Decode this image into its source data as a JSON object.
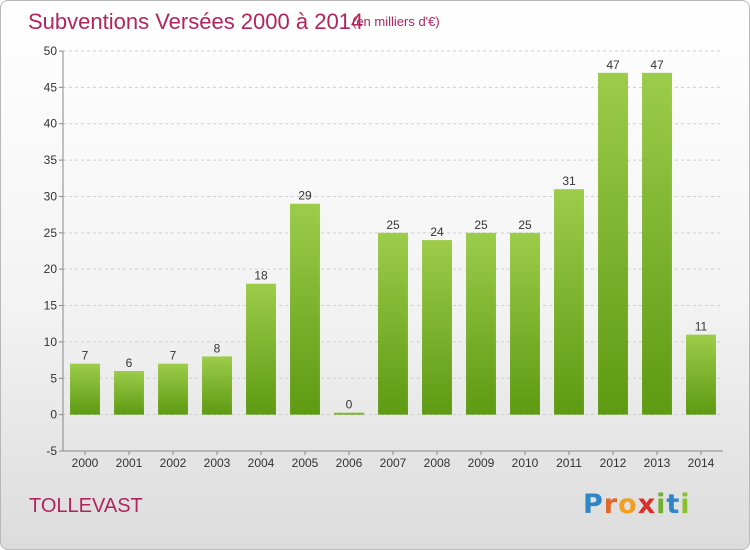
{
  "chart_data": {
    "type": "bar",
    "title": "Subventions Versées 2000 à 2014",
    "subtitle": "(en milliers d'€)",
    "categories": [
      "2000",
      "2001",
      "2002",
      "2003",
      "2004",
      "2005",
      "2006",
      "2007",
      "2008",
      "2009",
      "2010",
      "2011",
      "2012",
      "2013",
      "2014"
    ],
    "values": [
      7,
      6,
      7,
      8,
      18,
      29,
      0,
      25,
      24,
      25,
      25,
      31,
      47,
      47,
      11
    ],
    "ylim": [
      -5,
      50
    ],
    "yticks": [
      -5,
      0,
      5,
      10,
      15,
      20,
      25,
      30,
      35,
      40,
      45,
      50
    ],
    "grid": true,
    "xlabel": "",
    "ylabel": "",
    "bar_color_top": "#9ccc4a",
    "bar_color_bottom": "#5e9a12"
  },
  "footer": {
    "commune": "TOLLEVAST",
    "logo_letters": [
      {
        "char": "P",
        "color": "#2e86c8"
      },
      {
        "char": "r",
        "color": "#e0682a"
      },
      {
        "char": "o",
        "color": "#f0a020"
      },
      {
        "char": "x",
        "color": "#d8302c"
      },
      {
        "char": "i",
        "color": "#70b030"
      },
      {
        "char": "t",
        "color": "#2e86c8"
      },
      {
        "char": "i",
        "color": "#8abf30"
      }
    ]
  },
  "colors": {
    "title": "#b3245c",
    "grid": "#cfcfcf"
  }
}
